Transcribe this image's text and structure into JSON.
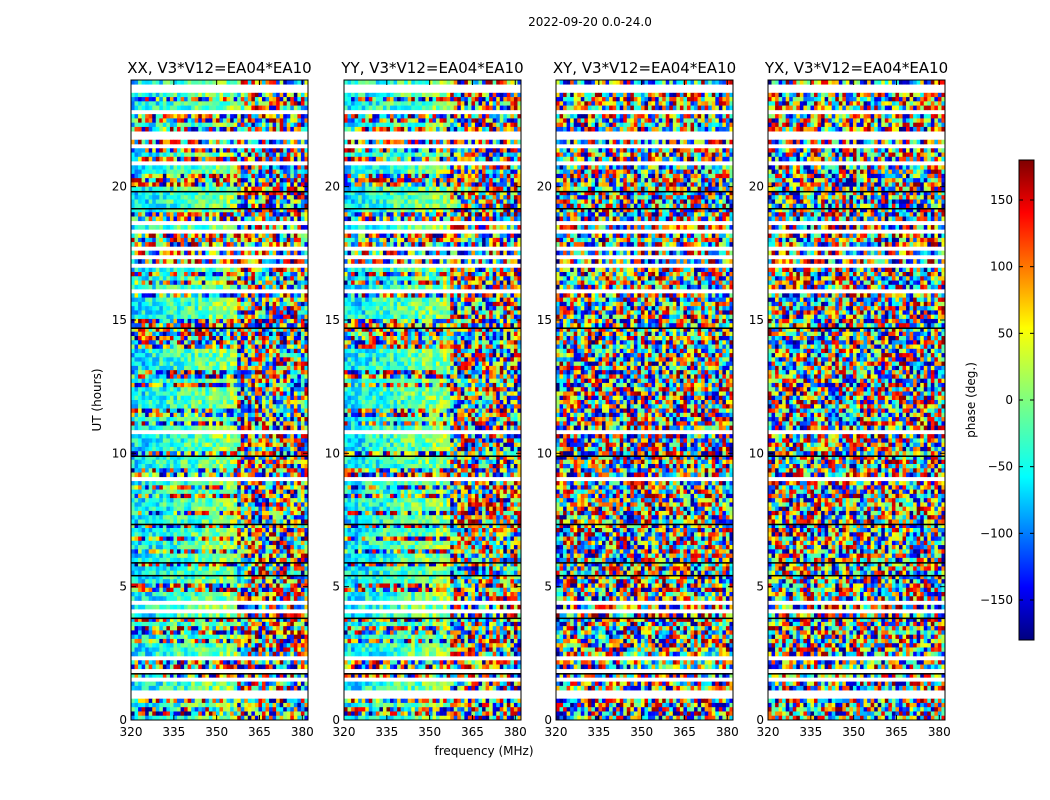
{
  "chart_data": {
    "type": "heatmap",
    "title": "2022-09-20 0.0-24.0",
    "xlabel": "frequency (MHz)",
    "ylabel": "UT (hours)",
    "xlim": [
      320,
      382
    ],
    "ylim": [
      0,
      24
    ],
    "x_ticks": [
      "320",
      "335",
      "350",
      "365",
      "380"
    ],
    "y_ticks": [
      "0",
      "5",
      "10",
      "15",
      "20"
    ],
    "panels": [
      {
        "title": "XX, V3*V12=EA04*EA10",
        "pol": "XX"
      },
      {
        "title": "YY, V3*V12=EA04*EA10",
        "pol": "YY"
      },
      {
        "title": "XY, V3*V12=EA04*EA10",
        "pol": "XY"
      },
      {
        "title": "YX, V3*V12=EA04*EA10",
        "pol": "YX"
      }
    ],
    "colorbar": {
      "label": "phase (deg.)",
      "range": [
        -180,
        180
      ],
      "ticks": [
        "150",
        "100",
        "50",
        "0",
        "−50",
        "−100",
        "−150"
      ],
      "colormap": "jet"
    }
  }
}
